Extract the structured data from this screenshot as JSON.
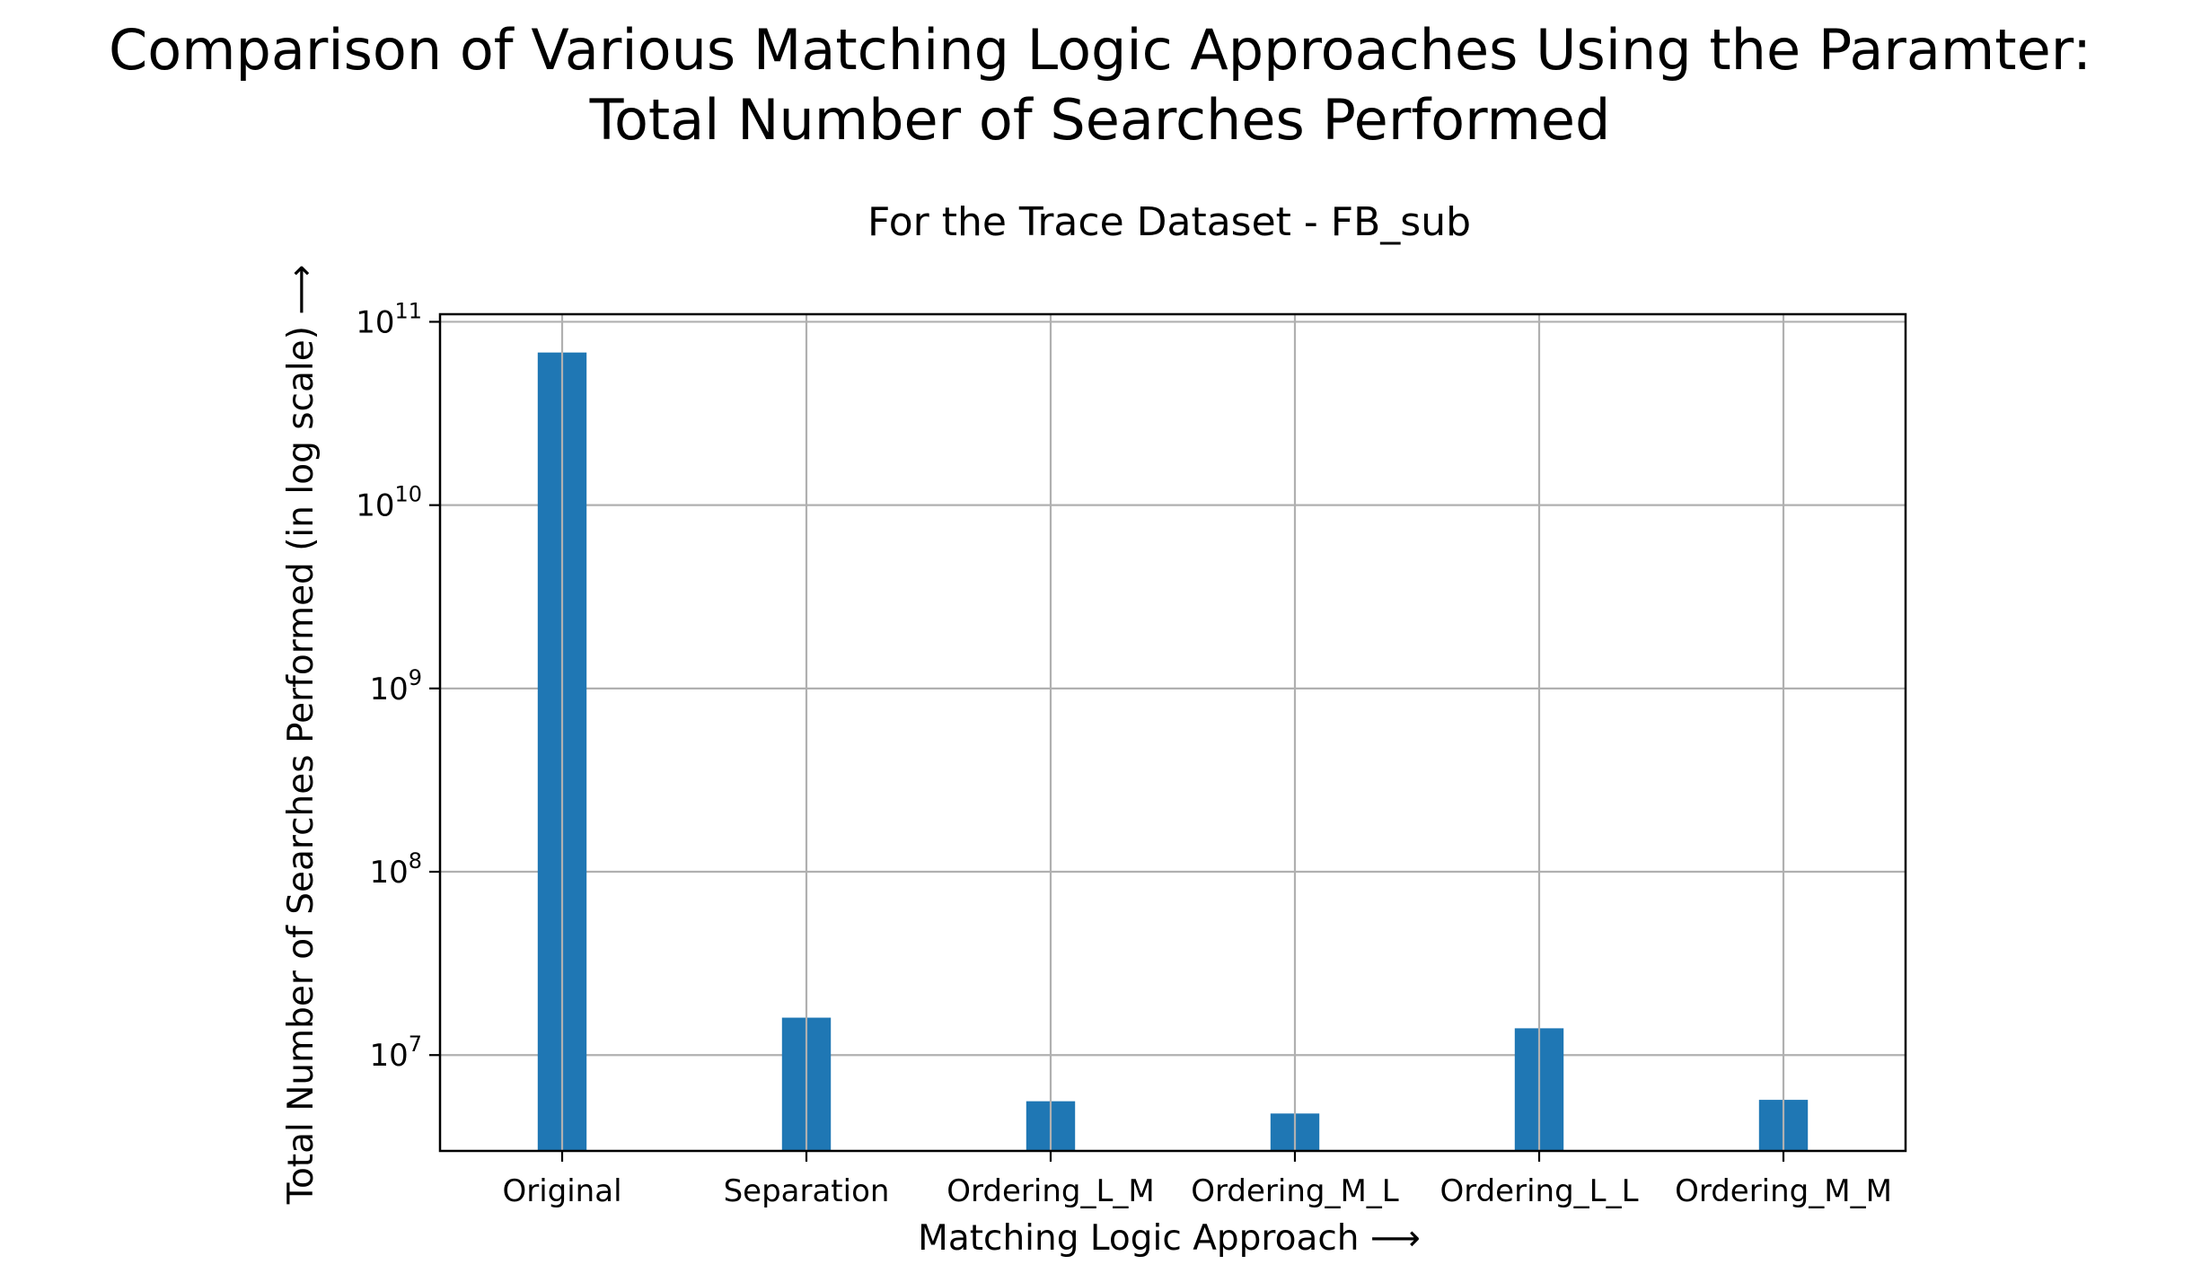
{
  "chart_data": {
    "type": "bar",
    "title": "Comparison of Various Matching Logic Approaches Using the Paramter:",
    "title_line2": "Total Number of Searches Performed",
    "subtitle": "For the Trace Dataset - FB_sub",
    "xlabel": "Matching Logic Approach ⟶",
    "ylabel": "Total Number of Searches Performed (in log scale) ⟶",
    "categories": [
      "Original",
      "Separation",
      "Ordering_L_M",
      "Ordering_M_L",
      "Ordering_L_L",
      "Ordering_M_M"
    ],
    "values": [
      68000000000,
      16000000,
      5600000,
      4800000,
      14000000,
      5700000
    ],
    "y_scale": "log",
    "ylim": [
      3000000,
      110000000000
    ],
    "y_ticks": [
      {
        "value": 10000000,
        "base": "10",
        "exp": "7"
      },
      {
        "value": 100000000,
        "base": "10",
        "exp": "8"
      },
      {
        "value": 1000000000,
        "base": "10",
        "exp": "9"
      },
      {
        "value": 10000000000,
        "base": "10",
        "exp": "10"
      },
      {
        "value": 100000000000,
        "base": "10",
        "exp": "11"
      }
    ],
    "grid": true,
    "bar_color": "#1f77b4",
    "grid_color": "#b0b0b0"
  }
}
